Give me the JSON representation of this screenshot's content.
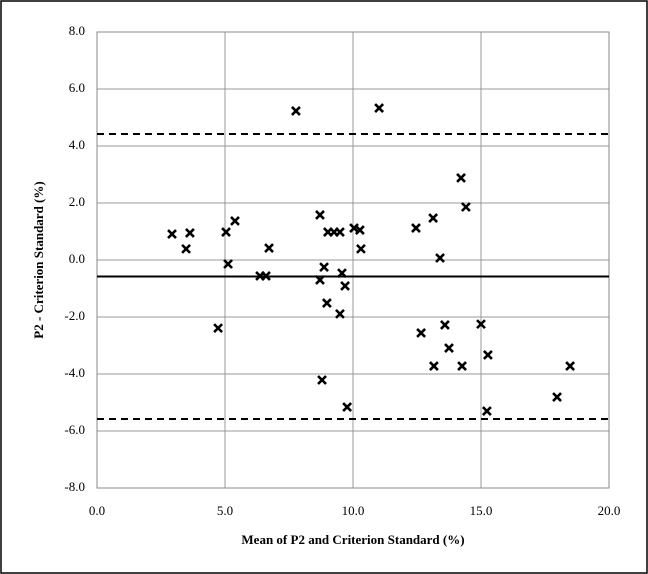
{
  "chart_data": {
    "type": "scatter",
    "x_label": "Mean of P2 and Criterion Standard  (%)",
    "y_label": "P2 - Criterion Standard  (%)",
    "xlim": [
      0,
      20
    ],
    "ylim": [
      -8,
      8
    ],
    "xticks": [
      {
        "value": 0,
        "label": "0.0"
      },
      {
        "value": 5,
        "label": "5.0"
      },
      {
        "value": 10,
        "label": "10.0"
      },
      {
        "value": 15,
        "label": "15.0"
      },
      {
        "value": 20,
        "label": "20.0"
      }
    ],
    "yticks": [
      {
        "value": -8,
        "label": "-8.0"
      },
      {
        "value": -6,
        "label": "-6.0"
      },
      {
        "value": -4,
        "label": "-4.0"
      },
      {
        "value": -2,
        "label": "-2.0"
      },
      {
        "value": 0,
        "label": "0.0"
      },
      {
        "value": 2,
        "label": "2.0"
      },
      {
        "value": 4,
        "label": "4.0"
      },
      {
        "value": 6,
        "label": "6.0"
      },
      {
        "value": 8,
        "label": "8.0"
      }
    ],
    "grid": true,
    "color": "#000000",
    "reference_lines": [
      {
        "value": -0.58,
        "style": "solid"
      },
      {
        "value": 4.42,
        "style": "dashed"
      },
      {
        "value": -5.58,
        "style": "dashed"
      }
    ],
    "x": [
      2.93,
      3.63,
      3.48,
      4.73,
      5.04,
      5.39,
      5.12,
      6.37,
      6.6,
      6.72,
      7.77,
      8.71,
      8.71,
      8.87,
      8.98,
      8.79,
      9.02,
      9.26,
      9.49,
      9.57,
      9.49,
      9.69,
      9.77,
      10.04,
      10.27,
      10.31,
      11.02,
      12.46,
      12.66,
      13.13,
      13.16,
      13.4,
      13.59,
      13.75,
      14.22,
      14.26,
      14.41,
      15.0,
      15.23,
      15.27,
      17.97,
      18.48
    ],
    "y": [
      0.91,
      0.95,
      0.39,
      -2.39,
      0.98,
      1.37,
      -0.14,
      -0.56,
      -0.56,
      0.42,
      5.23,
      1.58,
      -0.7,
      -0.25,
      -1.51,
      -4.21,
      0.98,
      0.98,
      0.98,
      -0.46,
      -1.89,
      -0.91,
      -5.16,
      1.12,
      1.05,
      0.39,
      5.33,
      1.12,
      -2.56,
      1.47,
      -3.72,
      0.07,
      -2.28,
      -3.09,
      2.88,
      -3.72,
      1.86,
      -2.25,
      -5.3,
      -3.33,
      -4.81,
      -3.72
    ]
  }
}
